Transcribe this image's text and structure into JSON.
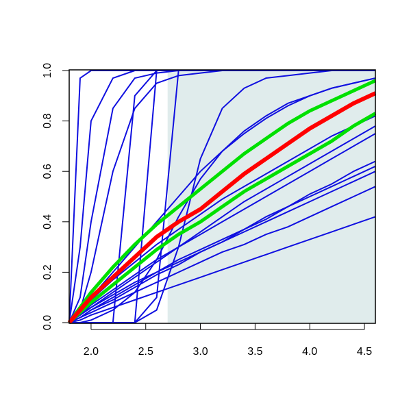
{
  "chart_data": {
    "type": "line",
    "x": [
      1.8,
      1.9,
      2.0,
      2.2,
      2.4,
      2.6,
      2.8,
      3.0,
      3.2,
      3.4,
      3.6,
      3.8,
      4.0,
      4.2,
      4.4,
      4.6
    ],
    "xlim": [
      1.8,
      4.6
    ],
    "ylim": [
      0,
      1
    ],
    "xticks": [
      {
        "value": 2,
        "label": "2.0"
      },
      {
        "value": 2.5,
        "label": "2.5"
      },
      {
        "value": 3,
        "label": "3.0"
      },
      {
        "value": 3.5,
        "label": "3.5"
      },
      {
        "value": 4,
        "label": "4.0"
      },
      {
        "value": 4.5,
        "label": "4.5"
      }
    ],
    "yticks": [
      {
        "value": 0,
        "label": "0.0"
      },
      {
        "value": 0.2,
        "label": "0.2"
      },
      {
        "value": 0.4,
        "label": "0.4"
      },
      {
        "value": 0.6,
        "label": "0.6"
      },
      {
        "value": 0.8,
        "label": "0.8"
      },
      {
        "value": 1,
        "label": "1.0"
      }
    ],
    "shaded_region": {
      "xlim": [
        2.7,
        4.6
      ],
      "color": "#e0ecec"
    },
    "series": [
      {
        "color": "#1010e0",
        "width": 2,
        "values": [
          0,
          0.97,
          1,
          1,
          1,
          1,
          1,
          1,
          1,
          1,
          1,
          1,
          1,
          1,
          1,
          1
        ]
      },
      {
        "color": "#1010e0",
        "width": 2,
        "values": [
          0,
          0.3,
          0.8,
          0.97,
          1,
          1,
          1,
          1,
          1,
          1,
          1,
          1,
          1,
          1,
          1,
          1
        ]
      },
      {
        "color": "#1010e0",
        "width": 2,
        "values": [
          0,
          0.1,
          0.4,
          0.85,
          0.97,
          0.99,
          1,
          1,
          1,
          1,
          1,
          1,
          1,
          1,
          1,
          1
        ]
      },
      {
        "color": "#1010e0",
        "width": 2,
        "values": [
          0,
          0.05,
          0.2,
          0.6,
          0.85,
          0.95,
          0.98,
          0.99,
          1,
          1,
          1,
          1,
          1,
          1,
          1,
          1
        ]
      },
      {
        "color": "#1010e0",
        "width": 2,
        "values": [
          0,
          0,
          0,
          0,
          0.9,
          1,
          1,
          1,
          1,
          1,
          1,
          1,
          1,
          1,
          1,
          1
        ]
      },
      {
        "color": "#1010e0",
        "width": 2,
        "values": [
          0,
          0,
          0,
          0,
          0,
          1,
          1,
          1,
          1,
          1,
          1,
          1,
          1,
          1,
          1,
          1
        ]
      },
      {
        "color": "#1010e0",
        "width": 2,
        "values": [
          0,
          0,
          0,
          0,
          0,
          0.1,
          1,
          1,
          1,
          1,
          1,
          1,
          1,
          1,
          1,
          1
        ]
      },
      {
        "color": "#1010e0",
        "width": 2,
        "values": [
          0,
          0,
          0,
          0,
          0,
          0.05,
          0.3,
          0.65,
          0.85,
          0.93,
          0.97,
          0.98,
          0.99,
          1,
          1,
          1
        ]
      },
      {
        "color": "#1010e0",
        "width": 2,
        "values": [
          0,
          0,
          0.01,
          0.05,
          0.12,
          0.25,
          0.42,
          0.57,
          0.68,
          0.76,
          0.82,
          0.87,
          0.9,
          0.93,
          0.95,
          0.97
        ]
      },
      {
        "color": "#1010e0",
        "width": 2,
        "values": [
          0,
          0.05,
          0.1,
          0.2,
          0.3,
          0.4,
          0.5,
          0.6,
          0.68,
          0.75,
          0.81,
          0.86,
          0.9,
          0.93,
          0.95,
          0.97
        ]
      },
      {
        "color": "#1010e0",
        "width": 2,
        "values": [
          0,
          0.04,
          0.09,
          0.17,
          0.24,
          0.31,
          0.37,
          0.43,
          0.49,
          0.54,
          0.59,
          0.64,
          0.69,
          0.74,
          0.78,
          0.82
        ]
      },
      {
        "color": "#1010e0",
        "width": 2,
        "values": [
          0,
          0.03,
          0.06,
          0.12,
          0.18,
          0.24,
          0.3,
          0.36,
          0.42,
          0.48,
          0.53,
          0.58,
          0.63,
          0.68,
          0.73,
          0.78
        ]
      },
      {
        "color": "#1010e0",
        "width": 2,
        "values": [
          0,
          0.03,
          0.07,
          0.13,
          0.19,
          0.25,
          0.3,
          0.35,
          0.4,
          0.45,
          0.5,
          0.55,
          0.6,
          0.65,
          0.7,
          0.75
        ]
      },
      {
        "color": "#1010e0",
        "width": 2,
        "values": [
          0,
          0.02,
          0.05,
          0.1,
          0.15,
          0.2,
          0.25,
          0.29,
          0.33,
          0.37,
          0.42,
          0.46,
          0.51,
          0.55,
          0.6,
          0.64
        ]
      },
      {
        "color": "#1010e0",
        "width": 2,
        "values": [
          0,
          0.02,
          0.05,
          0.09,
          0.14,
          0.19,
          0.23,
          0.28,
          0.32,
          0.37,
          0.41,
          0.46,
          0.5,
          0.54,
          0.58,
          0.62
        ]
      },
      {
        "color": "#1010e0",
        "width": 2,
        "values": [
          0,
          0.03,
          0.06,
          0.11,
          0.16,
          0.2,
          0.24,
          0.28,
          0.32,
          0.36,
          0.4,
          0.44,
          0.48,
          0.52,
          0.56,
          0.6
        ]
      },
      {
        "color": "#1010e0",
        "width": 2,
        "values": [
          0,
          0.02,
          0.04,
          0.08,
          0.12,
          0.16,
          0.2,
          0.24,
          0.28,
          0.31,
          0.35,
          0.38,
          0.42,
          0.46,
          0.5,
          0.54
        ]
      },
      {
        "color": "#1010e0",
        "width": 2,
        "values": [
          0,
          0.01,
          0.03,
          0.06,
          0.09,
          0.12,
          0.15,
          0.18,
          0.21,
          0.24,
          0.27,
          0.3,
          0.33,
          0.36,
          0.39,
          0.42
        ]
      },
      {
        "color": "#00e000",
        "width": 5,
        "values": [
          0,
          0.06,
          0.12,
          0.22,
          0.31,
          0.39,
          0.46,
          0.53,
          0.6,
          0.67,
          0.73,
          0.79,
          0.84,
          0.88,
          0.92,
          0.96
        ]
      },
      {
        "color": "#00e000",
        "width": 5,
        "values": [
          0,
          0.04,
          0.08,
          0.15,
          0.22,
          0.29,
          0.35,
          0.4,
          0.46,
          0.52,
          0.57,
          0.62,
          0.67,
          0.72,
          0.78,
          0.83
        ]
      },
      {
        "color": "#ff0000",
        "width": 6,
        "values": [
          0,
          0.05,
          0.1,
          0.18,
          0.26,
          0.34,
          0.4,
          0.45,
          0.52,
          0.59,
          0.65,
          0.71,
          0.77,
          0.82,
          0.87,
          0.91
        ]
      }
    ]
  }
}
